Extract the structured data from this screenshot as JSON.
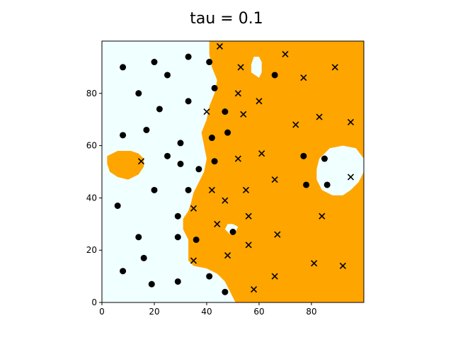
{
  "title": "tau = 0.1",
  "colors": {
    "region_a": "#f0ffff",
    "region_b": "#ffa500",
    "marker": "#000000"
  },
  "chart_data": {
    "type": "scatter",
    "title": "tau = 0.1",
    "xlabel": "",
    "ylabel": "",
    "xlim": [
      0,
      100
    ],
    "ylim": [
      0,
      100
    ],
    "xticks": [
      0,
      20,
      40,
      60,
      80
    ],
    "yticks": [
      0,
      20,
      40,
      60,
      80
    ],
    "grid": false,
    "background": "decision regions: light cyan (class circle) and orange (class x)",
    "regions": {
      "region_b_boundary": [
        [
          41,
          100
        ],
        [
          41,
          95
        ],
        [
          42,
          90
        ],
        [
          44,
          85
        ],
        [
          43,
          80
        ],
        [
          41,
          75
        ],
        [
          40,
          70
        ],
        [
          38,
          65
        ],
        [
          39,
          60
        ],
        [
          40,
          55
        ],
        [
          39,
          50
        ],
        [
          37,
          46
        ],
        [
          35,
          42
        ],
        [
          34,
          38
        ],
        [
          33,
          35
        ],
        [
          31,
          32
        ],
        [
          31,
          28
        ],
        [
          33,
          24
        ],
        [
          33,
          20
        ],
        [
          33,
          16
        ],
        [
          35,
          14
        ],
        [
          40,
          13
        ],
        [
          44,
          11
        ],
        [
          47,
          8
        ],
        [
          51,
          0
        ],
        [
          100,
          0
        ],
        [
          100,
          100
        ]
      ],
      "region_a_islands": [
        [
          [
            58,
            94
          ],
          [
            57,
            91
          ],
          [
            57,
            88
          ],
          [
            60,
            86
          ],
          [
            61,
            88
          ],
          [
            61,
            92
          ],
          [
            60,
            94
          ]
        ],
        [
          [
            83,
            55
          ],
          [
            87,
            59
          ],
          [
            92,
            60
          ],
          [
            97,
            59
          ],
          [
            100,
            55
          ],
          [
            100,
            50
          ],
          [
            98,
            46
          ],
          [
            95,
            43
          ],
          [
            92,
            41
          ],
          [
            88,
            41
          ],
          [
            84,
            43
          ],
          [
            82,
            47
          ],
          [
            82,
            51
          ]
        ],
        [
          [
            47,
            28
          ],
          [
            49,
            26
          ],
          [
            51,
            27
          ],
          [
            52,
            29
          ],
          [
            50,
            30
          ],
          [
            48,
            30
          ]
        ]
      ],
      "region_b_islands": [
        [
          [
            2,
            56
          ],
          [
            6,
            58
          ],
          [
            11,
            58
          ],
          [
            14,
            57
          ],
          [
            16,
            55
          ],
          [
            16,
            52
          ],
          [
            14,
            49
          ],
          [
            10,
            47
          ],
          [
            6,
            48
          ],
          [
            3,
            50
          ],
          [
            2,
            53
          ]
        ]
      ]
    },
    "series": [
      {
        "marker": "circle",
        "x": [
          8,
          20,
          25,
          33,
          41,
          14,
          22,
          33,
          43,
          47,
          8,
          17,
          30,
          42,
          48,
          25,
          30,
          43,
          37,
          20,
          33,
          6,
          29,
          14,
          36,
          50,
          16,
          29,
          8,
          41,
          19,
          29,
          47,
          66,
          77,
          85,
          78,
          86
        ],
        "y": [
          90,
          92,
          87,
          94,
          92,
          80,
          74,
          77,
          82,
          73,
          64,
          66,
          61,
          63,
          65,
          56,
          53,
          54,
          51,
          43,
          43,
          37,
          33,
          25,
          24,
          27,
          17,
          25,
          12,
          10,
          7,
          8,
          4,
          87,
          56,
          55,
          45,
          45
        ]
      },
      {
        "marker": "x",
        "x": [
          45,
          53,
          70,
          52,
          60,
          54,
          40,
          77,
          89,
          83,
          95,
          74,
          61,
          52,
          95,
          15,
          66,
          55,
          42,
          47,
          35,
          56,
          84,
          44,
          67,
          56,
          48,
          35,
          66,
          81,
          92,
          58
        ],
        "y": [
          98,
          90,
          95,
          80,
          77,
          72,
          73,
          86,
          90,
          71,
          69,
          68,
          57,
          55,
          48,
          54,
          47,
          43,
          43,
          39,
          36,
          33,
          33,
          30,
          26,
          22,
          18,
          16,
          10,
          15,
          14,
          5
        ]
      }
    ]
  }
}
